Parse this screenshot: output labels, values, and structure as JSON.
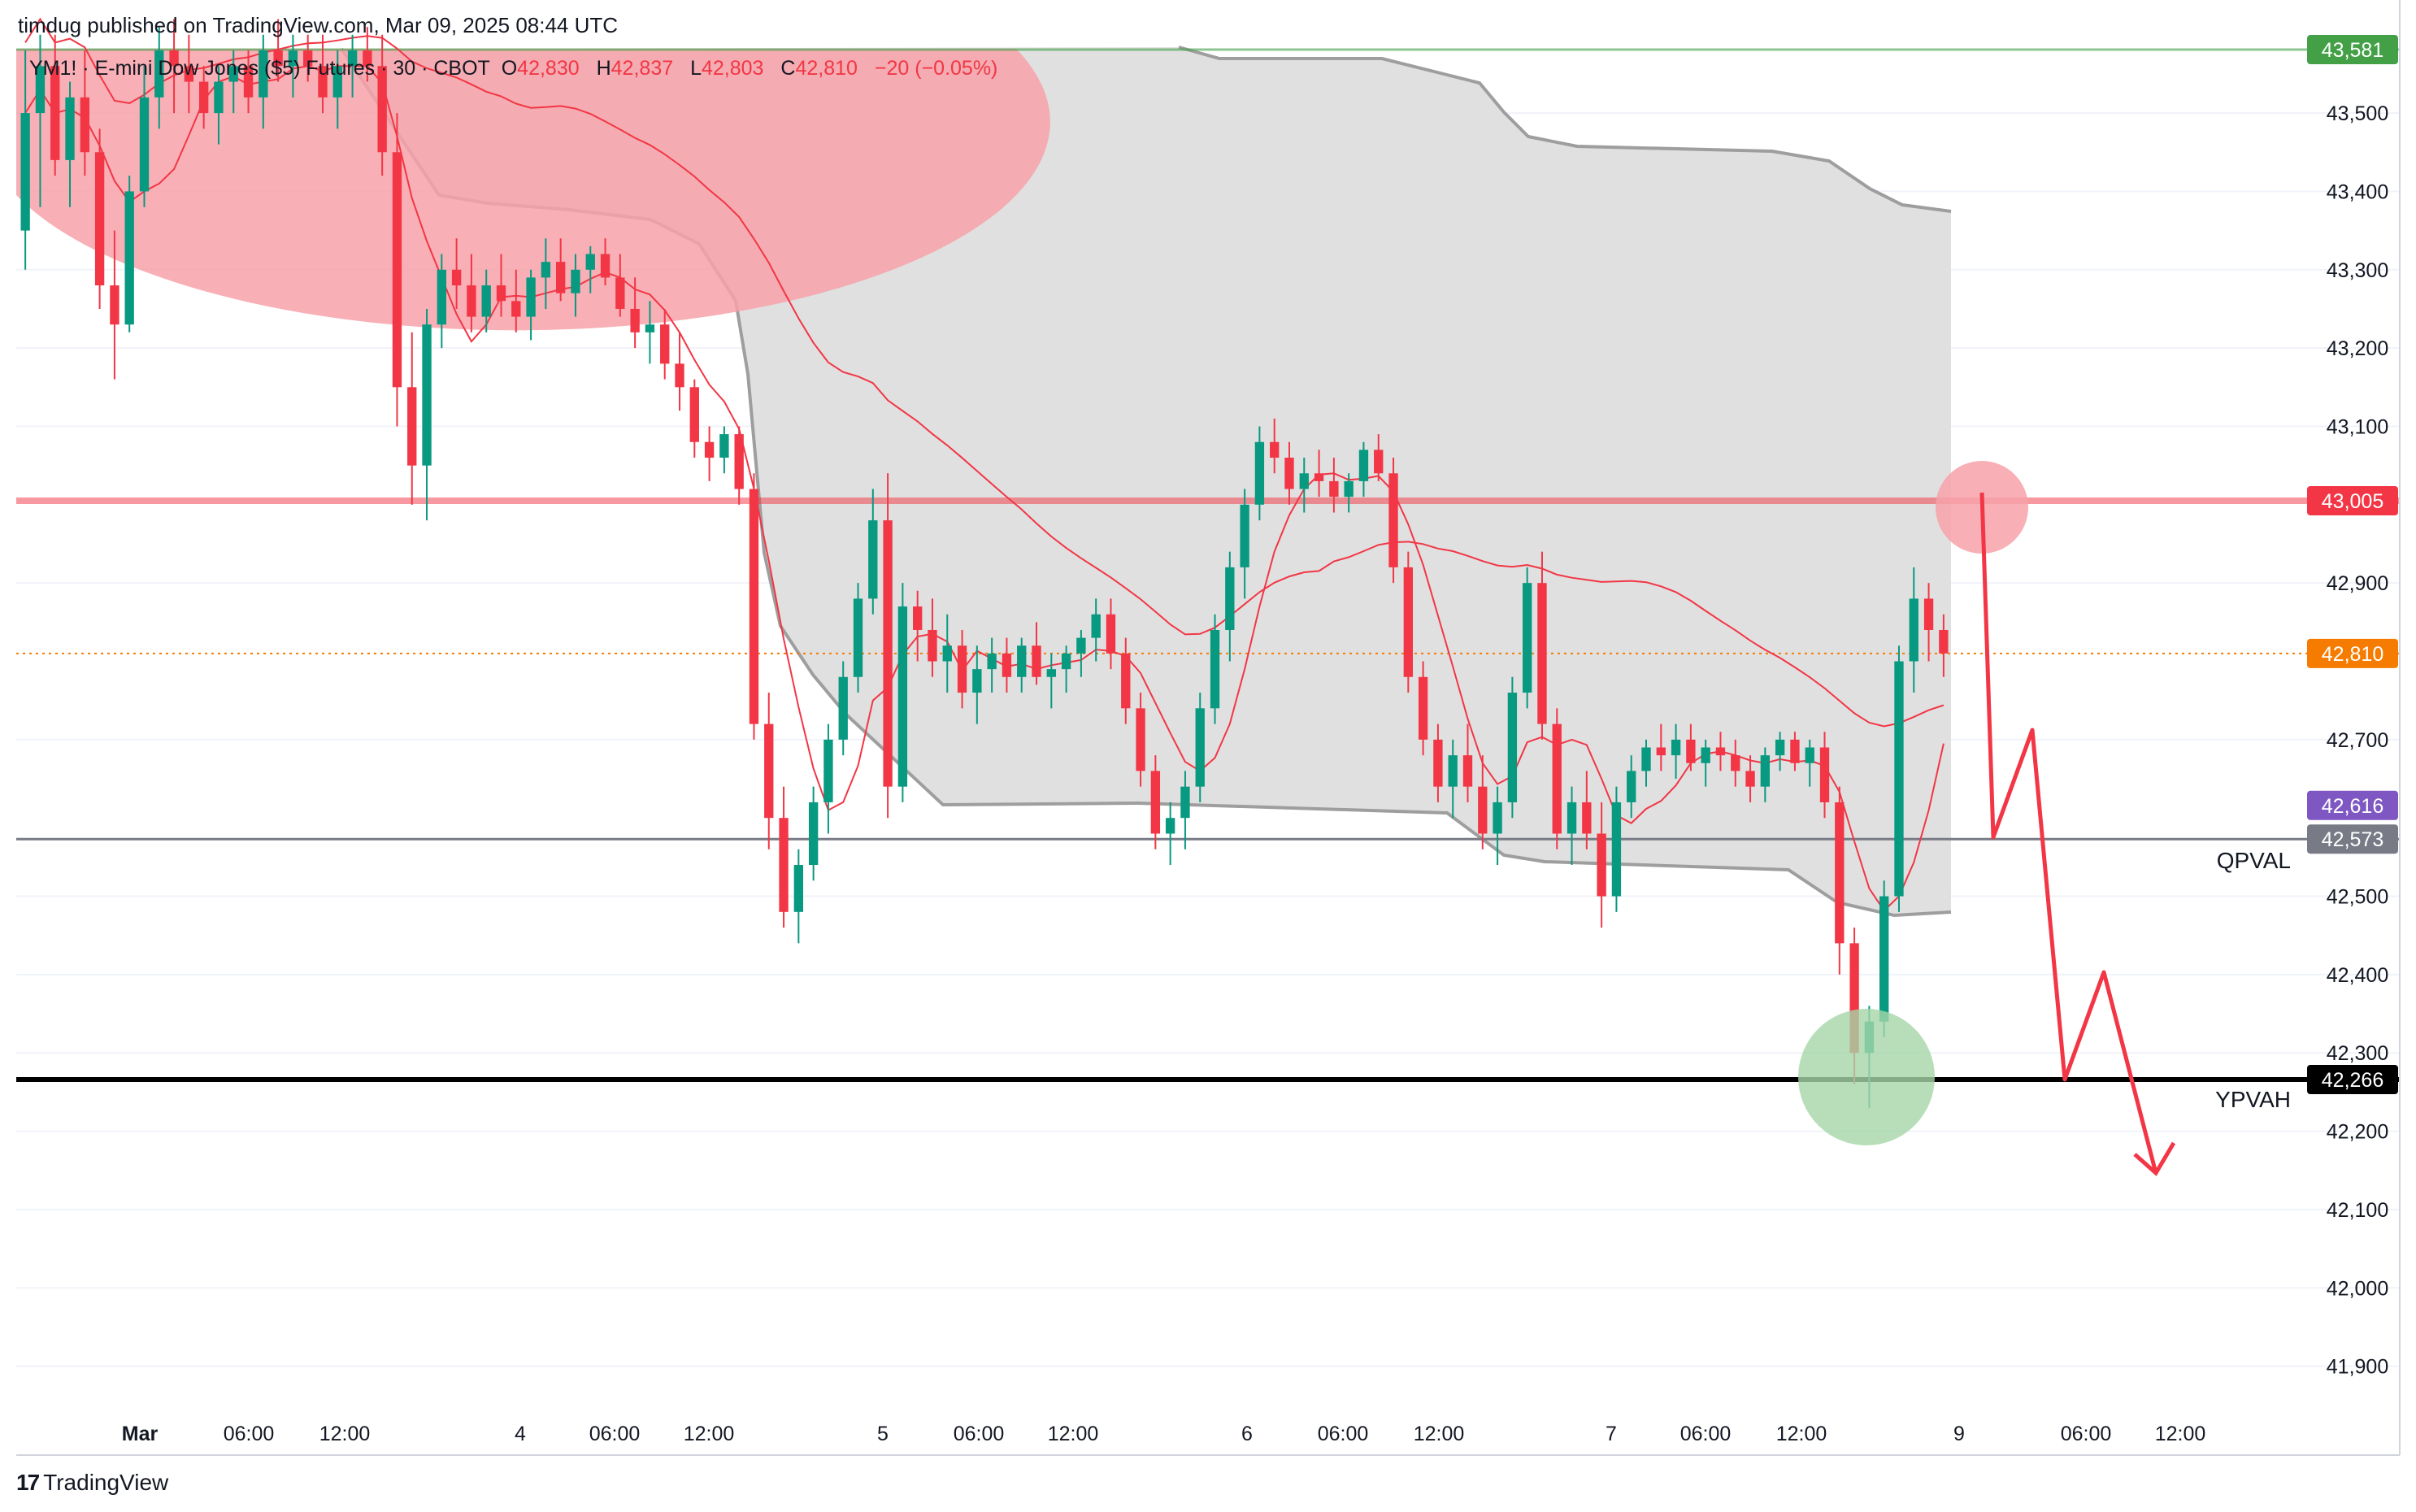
{
  "header": {
    "published": "timdug published on TradingView.com, Mar 09, 2025 08:44 UTC"
  },
  "legend": {
    "symbol": "YM1! · E-mini Dow Jones ($5) Futures · 30 · CBOT",
    "o_label": "O",
    "o_value": "42,830",
    "h_label": "H",
    "h_value": "42,837",
    "l_label": "L",
    "l_value": "42,803",
    "c_label": "C",
    "c_value": "42,810",
    "change": "−20 (−0.05%)"
  },
  "footer": {
    "brand": "TradingView",
    "logo_glyph": "17"
  },
  "colors": {
    "up": "#089981",
    "down": "#f23645",
    "grid": "#f0f3fa",
    "zone": "#dedede",
    "zone_edge": "#9e9e9e",
    "red_circle": "#f7a1a8",
    "green_circle": "#a5d6a7",
    "axis_text": "#131722"
  },
  "chart_data": {
    "type": "candlestick",
    "title": "YM1! · E-mini Dow Jones ($5) Futures · 30 · CBOT",
    "ylim": [
      41820,
      43640
    ],
    "y_ticks": [
      43500,
      43400,
      43300,
      43200,
      43100,
      42900,
      42700,
      42500,
      42400,
      42300,
      42200,
      42100,
      42000,
      41900
    ],
    "y_tick_labels": [
      "43,500",
      "43,400",
      "43,300",
      "43,200",
      "43,100",
      "42,900",
      "42,700",
      "42,500",
      "42,400",
      "42,300",
      "42,200",
      "42,100",
      "42,000",
      "41,900"
    ],
    "x_tick_labels": [
      "Mar",
      "06:00",
      "12:00",
      "4",
      "06:00",
      "12:00",
      "5",
      "06:00",
      "12:00",
      "6",
      "06:00",
      "12:00",
      "7",
      "06:00",
      "12:00",
      "9",
      "06:00",
      "12:00"
    ],
    "grid": true,
    "price_levels": [
      {
        "value": 43581,
        "label": "43,581",
        "color": "#43a047",
        "style": "solid-thin"
      },
      {
        "value": 43005,
        "label": "43,005",
        "color": "#f23645",
        "style": "solid-thick"
      },
      {
        "value": 42810,
        "label": "42,810",
        "color": "#f57c00",
        "style": "dotted"
      },
      {
        "value": 42616,
        "label": "42,616",
        "color": "#7e57c2",
        "style": "none"
      },
      {
        "value": 42573,
        "label": "42,573",
        "color": "#787b86",
        "style": "solid",
        "name": "QPVAL"
      },
      {
        "value": 42266,
        "label": "42,266",
        "color": "#000000",
        "style": "solid-thick",
        "name": "YPVAH"
      }
    ],
    "annotations": [
      "QPVAL",
      "YPVAH"
    ],
    "candles_ohlc": [
      [
        43350,
        43580,
        43300,
        43500
      ],
      [
        43500,
        43600,
        43380,
        43560
      ],
      [
        43560,
        43600,
        43420,
        43440
      ],
      [
        43440,
        43540,
        43380,
        43520
      ],
      [
        43520,
        43580,
        43420,
        43450
      ],
      [
        43450,
        43480,
        43250,
        43280
      ],
      [
        43280,
        43350,
        43160,
        43230
      ],
      [
        43230,
        43420,
        43220,
        43400
      ],
      [
        43400,
        43560,
        43380,
        43520
      ],
      [
        43520,
        43610,
        43480,
        43580
      ],
      [
        43580,
        43620,
        43500,
        43560
      ],
      [
        43560,
        43600,
        43500,
        43540
      ],
      [
        43540,
        43560,
        43480,
        43500
      ],
      [
        43500,
        43560,
        43460,
        43540
      ],
      [
        43540,
        43580,
        43500,
        43560
      ],
      [
        43560,
        43580,
        43500,
        43520
      ],
      [
        43520,
        43600,
        43480,
        43580
      ],
      [
        43580,
        43620,
        43540,
        43560
      ],
      [
        43560,
        43600,
        43520,
        43580
      ],
      [
        43580,
        43600,
        43540,
        43560
      ],
      [
        43560,
        43600,
        43500,
        43520
      ],
      [
        43520,
        43580,
        43480,
        43560
      ],
      [
        43560,
        43600,
        43520,
        43580
      ],
      [
        43580,
        43610,
        43540,
        43560
      ],
      [
        43560,
        43600,
        43420,
        43450
      ],
      [
        43450,
        43500,
        43100,
        43150
      ],
      [
        43150,
        43220,
        43000,
        43050
      ],
      [
        43050,
        43250,
        42980,
        43230
      ],
      [
        43230,
        43320,
        43200,
        43300
      ],
      [
        43300,
        43340,
        43250,
        43280
      ],
      [
        43280,
        43320,
        43220,
        43240
      ],
      [
        43240,
        43300,
        43220,
        43280
      ],
      [
        43280,
        43320,
        43240,
        43260
      ],
      [
        43260,
        43300,
        43220,
        43240
      ],
      [
        43240,
        43300,
        43210,
        43290
      ],
      [
        43290,
        43340,
        43250,
        43310
      ],
      [
        43310,
        43340,
        43260,
        43270
      ],
      [
        43270,
        43320,
        43240,
        43300
      ],
      [
        43300,
        43330,
        43270,
        43320
      ],
      [
        43320,
        43340,
        43280,
        43290
      ],
      [
        43290,
        43320,
        43240,
        43250
      ],
      [
        43250,
        43290,
        43200,
        43220
      ],
      [
        43220,
        43260,
        43180,
        43230
      ],
      [
        43230,
        43250,
        43160,
        43180
      ],
      [
        43180,
        43220,
        43120,
        43150
      ],
      [
        43150,
        43160,
        43060,
        43080
      ],
      [
        43080,
        43100,
        43030,
        43060
      ],
      [
        43060,
        43100,
        43040,
        43090
      ],
      [
        43090,
        43100,
        43000,
        43020
      ],
      [
        43020,
        43040,
        42700,
        42720
      ],
      [
        42720,
        42760,
        42560,
        42600
      ],
      [
        42600,
        42640,
        42460,
        42480
      ],
      [
        42480,
        42560,
        42440,
        42540
      ],
      [
        42540,
        42640,
        42520,
        42620
      ],
      [
        42620,
        42720,
        42580,
        42700
      ],
      [
        42700,
        42800,
        42680,
        42780
      ],
      [
        42780,
        42900,
        42760,
        42880
      ],
      [
        42880,
        43020,
        42860,
        42980
      ],
      [
        42980,
        43040,
        42600,
        42640
      ],
      [
        42640,
        42900,
        42620,
        42870
      ],
      [
        42870,
        42890,
        42800,
        42840
      ],
      [
        42840,
        42880,
        42780,
        42800
      ],
      [
        42800,
        42860,
        42760,
        42820
      ],
      [
        42820,
        42840,
        42740,
        42760
      ],
      [
        42760,
        42820,
        42720,
        42790
      ],
      [
        42790,
        42830,
        42760,
        42810
      ],
      [
        42810,
        42830,
        42760,
        42780
      ],
      [
        42780,
        42830,
        42760,
        42820
      ],
      [
        42820,
        42850,
        42770,
        42780
      ],
      [
        42780,
        42810,
        42740,
        42790
      ],
      [
        42790,
        42820,
        42760,
        42810
      ],
      [
        42810,
        42840,
        42780,
        42830
      ],
      [
        42830,
        42880,
        42800,
        42860
      ],
      [
        42860,
        42880,
        42790,
        42810
      ],
      [
        42810,
        42830,
        42720,
        42740
      ],
      [
        42740,
        42760,
        42640,
        42660
      ],
      [
        42660,
        42680,
        42560,
        42580
      ],
      [
        42580,
        42620,
        42540,
        42600
      ],
      [
        42600,
        42660,
        42560,
        42640
      ],
      [
        42640,
        42760,
        42620,
        42740
      ],
      [
        42740,
        42860,
        42720,
        42840
      ],
      [
        42840,
        42940,
        42800,
        42920
      ],
      [
        42920,
        43020,
        42880,
        43000
      ],
      [
        43000,
        43100,
        42980,
        43080
      ],
      [
        43080,
        43110,
        43040,
        43060
      ],
      [
        43060,
        43080,
        43000,
        43020
      ],
      [
        43020,
        43060,
        42990,
        43040
      ],
      [
        43040,
        43070,
        43010,
        43030
      ],
      [
        43030,
        43060,
        42990,
        43010
      ],
      [
        43010,
        43040,
        42990,
        43030
      ],
      [
        43030,
        43080,
        43010,
        43070
      ],
      [
        43070,
        43090,
        43030,
        43040
      ],
      [
        43040,
        43060,
        42900,
        42920
      ],
      [
        42920,
        42940,
        42760,
        42780
      ],
      [
        42780,
        42800,
        42680,
        42700
      ],
      [
        42700,
        42720,
        42620,
        42640
      ],
      [
        42640,
        42700,
        42600,
        42680
      ],
      [
        42680,
        42720,
        42620,
        42640
      ],
      [
        42640,
        42680,
        42560,
        42580
      ],
      [
        42580,
        42640,
        42540,
        42620
      ],
      [
        42620,
        42780,
        42600,
        42760
      ],
      [
        42760,
        42920,
        42740,
        42900
      ],
      [
        42900,
        42940,
        42700,
        42720
      ],
      [
        42720,
        42740,
        42560,
        42580
      ],
      [
        42580,
        42640,
        42540,
        42620
      ],
      [
        42620,
        42660,
        42560,
        42580
      ],
      [
        42580,
        42620,
        42460,
        42500
      ],
      [
        42500,
        42640,
        42480,
        42620
      ],
      [
        42620,
        42680,
        42600,
        42660
      ],
      [
        42660,
        42700,
        42640,
        42690
      ],
      [
        42690,
        42720,
        42660,
        42680
      ],
      [
        42680,
        42720,
        42650,
        42700
      ],
      [
        42700,
        42720,
        42660,
        42670
      ],
      [
        42670,
        42700,
        42640,
        42690
      ],
      [
        42690,
        42710,
        42660,
        42680
      ],
      [
        42680,
        42700,
        42640,
        42660
      ],
      [
        42660,
        42680,
        42620,
        42640
      ],
      [
        42640,
        42690,
        42620,
        42680
      ],
      [
        42680,
        42710,
        42660,
        42700
      ],
      [
        42700,
        42710,
        42660,
        42670
      ],
      [
        42670,
        42700,
        42640,
        42690
      ],
      [
        42690,
        42710,
        42600,
        42620
      ],
      [
        42620,
        42640,
        42400,
        42440
      ],
      [
        42440,
        42460,
        42260,
        42300
      ],
      [
        42300,
        42360,
        42230,
        42340
      ],
      [
        42340,
        42520,
        42320,
        42500
      ],
      [
        42500,
        42820,
        42480,
        42800
      ],
      [
        42800,
        42920,
        42760,
        42880
      ],
      [
        42880,
        42900,
        42800,
        42840
      ],
      [
        42840,
        42860,
        42780,
        42810
      ]
    ]
  }
}
